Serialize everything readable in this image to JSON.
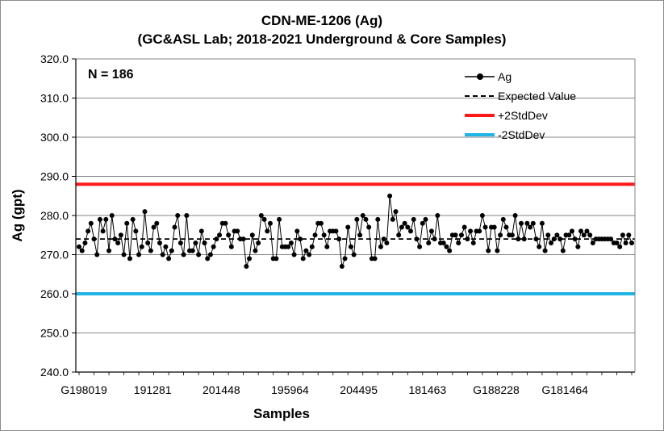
{
  "chart_data": {
    "type": "line",
    "title": "CDN-ME-1206 (Ag)",
    "subtitle": "(GC&ASL Lab; 2018-2021 Underground & Core Samples)",
    "xlabel": "Samples",
    "ylabel": "Ag (gpt)",
    "ylim": [
      240,
      320
    ],
    "yticks": [
      "240.0",
      "250.0",
      "260.0",
      "270.0",
      "280.0",
      "290.0",
      "300.0",
      "310.0",
      "320.0"
    ],
    "xtick_labels": [
      "G198019",
      "191281",
      "201448",
      "195964",
      "204495",
      "181463",
      "G188228",
      "G181464"
    ],
    "xtick_index": [
      0,
      23,
      46,
      69,
      92,
      115,
      138,
      161
    ],
    "n_samples": 186,
    "annotation": "N = 186",
    "grid": true,
    "legend_position": "top-right",
    "legend": [
      "Ag",
      "Expected Value",
      "+2StdDev",
      "-2StdDev"
    ],
    "expected_value": 274,
    "plus_2sd": 288,
    "minus_2sd": 260,
    "colors": {
      "ag": "#000000",
      "expected": "#000000",
      "plus_2sd": "#ff1a1a",
      "minus_2sd": "#1fb3e6",
      "grid": "#868686"
    },
    "series": [
      {
        "name": "Ag",
        "values": [
          272,
          271,
          273,
          276,
          278,
          274,
          270,
          279,
          276,
          279,
          271,
          280,
          274,
          273,
          275,
          270,
          278,
          269,
          279,
          276,
          270,
          272,
          281,
          273,
          271,
          277,
          278,
          273,
          270,
          272,
          269,
          271,
          277,
          280,
          273,
          270,
          280,
          271,
          271,
          273,
          270,
          276,
          273,
          269,
          270,
          272,
          274,
          275,
          278,
          278,
          275,
          272,
          276,
          276,
          274,
          274,
          267,
          269,
          275,
          271,
          273,
          280,
          279,
          276,
          278,
          269,
          269,
          279,
          272,
          272,
          272,
          273,
          270,
          276,
          274,
          269,
          271,
          270,
          272,
          275,
          278,
          278,
          275,
          272,
          276,
          276,
          276,
          274,
          267,
          269,
          277,
          272,
          270,
          279,
          275,
          280,
          279,
          277,
          269,
          269,
          279,
          272,
          274,
          273,
          285,
          279,
          281,
          275,
          277,
          278,
          277,
          276,
          279,
          274,
          272,
          278,
          279,
          273,
          276,
          274,
          280,
          273,
          273,
          272,
          271,
          275,
          275,
          273,
          275,
          277,
          274,
          276,
          273,
          276,
          276,
          280,
          277,
          271,
          277,
          277,
          271,
          275,
          279,
          277,
          275,
          275,
          280,
          274,
          278,
          274,
          278,
          277,
          278,
          274,
          272,
          278,
          271,
          275,
          273,
          274,
          275,
          274,
          271,
          275,
          275,
          276,
          274,
          272,
          276,
          275,
          276,
          275,
          273,
          274,
          274,
          274,
          274,
          274,
          274,
          273,
          273,
          272,
          275,
          273,
          275,
          273
        ]
      }
    ]
  }
}
